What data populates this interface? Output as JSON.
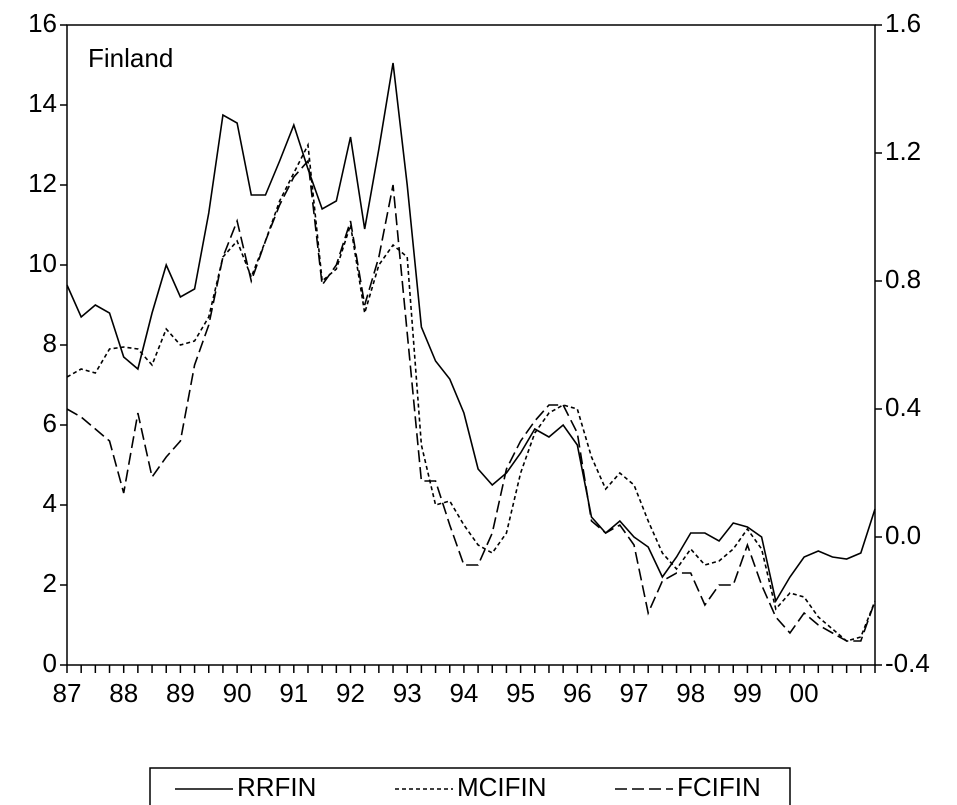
{
  "chart_data": {
    "type": "line",
    "annotation": "Finland",
    "categories": [
      "87",
      null,
      null,
      null,
      "88",
      null,
      null,
      null,
      "89",
      null,
      null,
      null,
      "90",
      null,
      null,
      null,
      "91",
      null,
      null,
      null,
      "92",
      null,
      null,
      null,
      "93",
      null,
      null,
      null,
      "94",
      null,
      null,
      null,
      "95",
      null,
      null,
      null,
      "96",
      null,
      null,
      null,
      "97",
      null,
      null,
      null,
      "98",
      null,
      null,
      null,
      "99",
      null,
      null,
      null,
      "00",
      null,
      null,
      null,
      null,
      null
    ],
    "series": [
      {
        "name": "RRFIN",
        "color": "#000000",
        "dash": "none",
        "values": [
          9.5,
          8.7,
          9.0,
          8.8,
          7.7,
          7.4,
          8.8,
          10.0,
          9.2,
          9.4,
          11.3,
          13.75,
          13.55,
          11.75,
          11.75,
          12.6,
          13.5,
          12.4,
          11.4,
          11.6,
          13.2,
          10.9,
          12.9,
          15.05,
          12.0,
          8.45,
          7.6,
          7.15,
          6.3,
          4.9,
          4.5,
          4.8,
          5.3,
          5.9,
          5.7,
          6.0,
          5.5,
          3.7,
          3.3,
          3.6,
          3.2,
          2.95,
          2.2,
          2.7,
          3.3,
          3.3,
          3.1,
          3.55,
          3.45,
          3.2,
          1.6,
          2.2,
          2.7,
          2.85,
          2.7,
          2.65,
          2.8,
          3.9
        ]
      },
      {
        "name": "MCIFIN",
        "color": "#000000",
        "dash": "4,3",
        "values": [
          7.2,
          7.4,
          7.3,
          7.9,
          7.95,
          7.9,
          7.5,
          8.4,
          8.0,
          8.1,
          8.7,
          10.2,
          10.6,
          9.7,
          10.6,
          11.6,
          12.3,
          13.0,
          9.6,
          9.9,
          11.0,
          8.8,
          10.0,
          10.5,
          10.2,
          5.5,
          4.0,
          4.1,
          3.5,
          3.0,
          2.8,
          3.3,
          4.8,
          5.8,
          6.3,
          6.5,
          6.4,
          5.2,
          4.4,
          4.8,
          4.5,
          3.6,
          2.8,
          2.4,
          2.9,
          2.5,
          2.6,
          2.9,
          3.4,
          2.9,
          1.4,
          1.8,
          1.7,
          1.2,
          0.9,
          0.6,
          0.7,
          1.6
        ]
      },
      {
        "name": "FCIFIN",
        "color": "#000000",
        "dash": "12,5",
        "values": [
          6.4,
          6.2,
          5.9,
          5.6,
          4.3,
          6.3,
          4.7,
          5.2,
          5.6,
          7.5,
          8.5,
          10.2,
          11.1,
          9.6,
          10.6,
          11.5,
          12.2,
          12.6,
          9.5,
          10.0,
          11.1,
          9.0,
          10.2,
          12.0,
          8.3,
          4.6,
          4.6,
          3.5,
          2.5,
          2.5,
          3.3,
          4.9,
          5.6,
          6.1,
          6.5,
          6.5,
          5.8,
          3.6,
          3.3,
          3.5,
          3.0,
          1.3,
          2.1,
          2.3,
          2.3,
          1.5,
          2.0,
          2.0,
          3.0,
          2.0,
          1.2,
          0.8,
          1.3,
          1.0,
          0.8,
          0.6,
          0.6,
          1.6
        ]
      }
    ],
    "ylim": [
      0,
      16
    ],
    "yticks": [
      0,
      2,
      4,
      6,
      8,
      10,
      12,
      14,
      16
    ],
    "y2lim": [
      -0.4,
      1.6
    ],
    "y2ticks": [
      -0.4,
      {
        "value": 0,
        "label": "0.0"
      },
      0.4,
      0.8,
      1.2,
      1.6
    ],
    "grid": false,
    "legend": "bottom"
  }
}
